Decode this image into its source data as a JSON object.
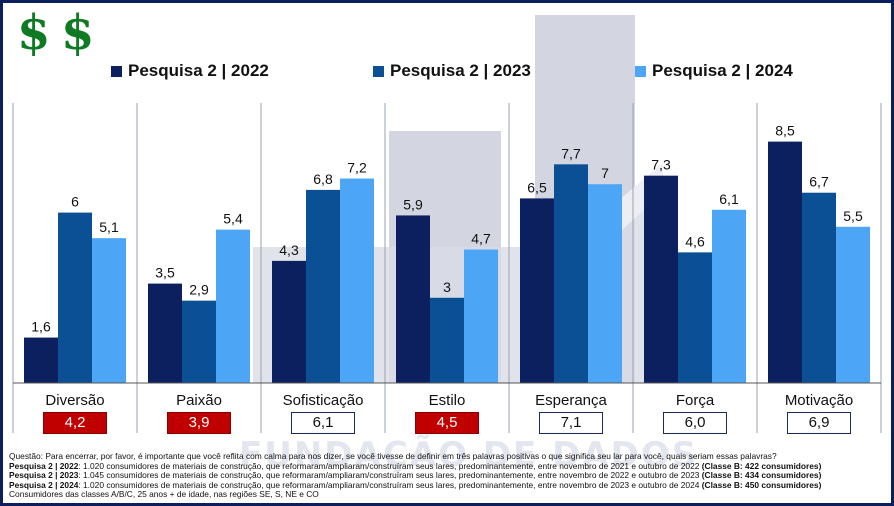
{
  "logo": {
    "symbols": [
      "$",
      "$"
    ],
    "color": "#0f7a23"
  },
  "legend": [
    {
      "label": "Pesquisa 2 | 2022",
      "color": "#0c1f5e"
    },
    {
      "label": "Pesquisa 2 | 2023",
      "color": "#0b4f95"
    },
    {
      "label": "Pesquisa 2 | 2024",
      "color": "#4da6f5"
    }
  ],
  "chart_data": {
    "type": "bar",
    "categories": [
      "Diversão",
      "Paixão",
      "Sofisticação",
      "Estilo",
      "Esperança",
      "Força",
      "Motivação"
    ],
    "series": [
      {
        "name": "Pesquisa 2 | 2022",
        "values": [
          1.6,
          3.5,
          4.3,
          5.9,
          6.5,
          7.3,
          8.5
        ],
        "labels": [
          "1,6",
          "3,5",
          "4,3",
          "5,9",
          "6,5",
          "7,3",
          "8,5"
        ],
        "color": "#0c1f5e"
      },
      {
        "name": "Pesquisa 2 | 2023",
        "values": [
          6,
          2.9,
          6.8,
          3,
          7.7,
          4.6,
          6.7
        ],
        "labels": [
          "6",
          "2,9",
          "6,8",
          "3",
          "7,7",
          "4,6",
          "6,7"
        ],
        "color": "#0b4f95"
      },
      {
        "name": "Pesquisa 2 | 2024",
        "values": [
          5.1,
          5.4,
          7.2,
          4.7,
          7,
          6.1,
          5.5
        ],
        "labels": [
          "5,1",
          "5,4",
          "7,2",
          "4,7",
          "7",
          "6,1",
          "5,5"
        ],
        "color": "#4da6f5"
      }
    ],
    "ylim": [
      0,
      10
    ],
    "grid": false,
    "legend_position": "top",
    "averages": [
      {
        "label": "4,2",
        "highlight": true
      },
      {
        "label": "3,9",
        "highlight": true
      },
      {
        "label": "6,1",
        "highlight": false
      },
      {
        "label": "4,5",
        "highlight": true
      },
      {
        "label": "7,1",
        "highlight": false
      },
      {
        "label": "6,0",
        "highlight": false
      },
      {
        "label": "6,9",
        "highlight": false
      }
    ],
    "highlight_color": "#c00000"
  },
  "watermark": "FUNDAÇÃO DE DADOS",
  "footer": {
    "question": "Questão: Para encerrar, por favor, é importante que você reflita com calma para nos dizer, se você tivesse de definir em três palavras positivas o que significa seu lar para você, quais seriam essas palavras?",
    "rows": [
      {
        "bold_prefix": "Pesquisa 2 | 2022",
        "text": ": 1.020 consumidores de materiais de construção, que reformaram/ampliaram/construíram seus lares, predominantemente, entre novembro de 2021 e outubro de 2022 ",
        "bold_suffix": "(Classe B: 422 consumidores)"
      },
      {
        "bold_prefix": "Pesquisa 2 | 2023",
        "text": ": 1.045 consumidores de materiais de construção, que reformaram/ampliaram/construíram seus lares, predominantemente, entre novembro de 2022 e outubro de 2023 ",
        "bold_suffix": "(Classe B: 434 consumidores)"
      },
      {
        "bold_prefix": "Pesquisa 2 | 2024",
        "text": ": 1.020 consumidores de materiais de construção, que reformaram/ampliaram/construíram seus lares, predominantemente, entre novembro de 2023 e outubro de 2024 ",
        "bold_suffix": "(Classe B: 450 consumidores)"
      }
    ],
    "note": "Consumidores das classes A/B/C, 25 anos + de idade, nas regiões SE, S, NE e CO"
  }
}
